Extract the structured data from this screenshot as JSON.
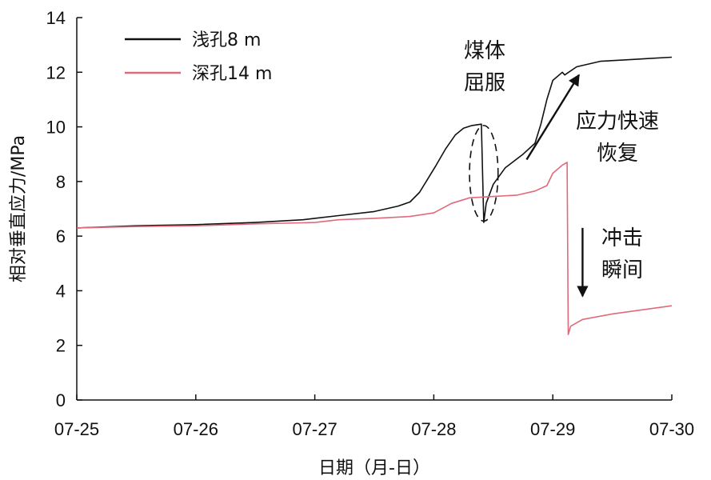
{
  "chart_data": {
    "type": "line",
    "xlabel": "日期（月-日）",
    "ylabel": "相对垂直应力/MPa",
    "xlim": [
      0,
      5
    ],
    "ylim": [
      0,
      14
    ],
    "x_ticks": [
      {
        "value": 0,
        "label": "07-25"
      },
      {
        "value": 1,
        "label": "07-26"
      },
      {
        "value": 2,
        "label": "07-27"
      },
      {
        "value": 3,
        "label": "07-28"
      },
      {
        "value": 4,
        "label": "07-29"
      },
      {
        "value": 5,
        "label": "07-30"
      }
    ],
    "y_ticks": [
      {
        "value": 0,
        "label": "0"
      },
      {
        "value": 2,
        "label": "2"
      },
      {
        "value": 4,
        "label": "4"
      },
      {
        "value": 6,
        "label": "6"
      },
      {
        "value": 8,
        "label": "8"
      },
      {
        "value": 10,
        "label": "10"
      },
      {
        "value": 12,
        "label": "12"
      },
      {
        "value": 14,
        "label": "14"
      }
    ],
    "grid": false,
    "legend_position": "top-left",
    "series": [
      {
        "name": "浅孔8 m",
        "color": "#111111",
        "points": [
          [
            0,
            6.3
          ],
          [
            0.5,
            6.38
          ],
          [
            1.0,
            6.42
          ],
          [
            1.5,
            6.5
          ],
          [
            1.9,
            6.6
          ],
          [
            2.0,
            6.65
          ],
          [
            2.2,
            6.75
          ],
          [
            2.5,
            6.9
          ],
          [
            2.7,
            7.1
          ],
          [
            2.8,
            7.25
          ],
          [
            2.88,
            7.6
          ],
          [
            2.95,
            8.1
          ],
          [
            3.02,
            8.6
          ],
          [
            3.1,
            9.2
          ],
          [
            3.18,
            9.7
          ],
          [
            3.25,
            9.95
          ],
          [
            3.32,
            10.05
          ],
          [
            3.4,
            10.1
          ],
          [
            3.42,
            6.5
          ],
          [
            3.44,
            7.2
          ],
          [
            3.5,
            7.9
          ],
          [
            3.6,
            8.5
          ],
          [
            3.75,
            9.0
          ],
          [
            3.85,
            9.4
          ],
          [
            3.9,
            10.1
          ],
          [
            3.95,
            11.0
          ],
          [
            4.0,
            11.7
          ],
          [
            4.08,
            12.0
          ],
          [
            4.1,
            11.9
          ],
          [
            4.2,
            12.2
          ],
          [
            4.4,
            12.4
          ],
          [
            4.6,
            12.45
          ],
          [
            4.8,
            12.5
          ],
          [
            5.0,
            12.55
          ]
        ]
      },
      {
        "name": "深孔14 m",
        "color": "#e06a7a",
        "points": [
          [
            0,
            6.3
          ],
          [
            0.5,
            6.35
          ],
          [
            1.0,
            6.38
          ],
          [
            1.5,
            6.45
          ],
          [
            2.0,
            6.5
          ],
          [
            2.2,
            6.6
          ],
          [
            2.5,
            6.65
          ],
          [
            2.8,
            6.72
          ],
          [
            3.0,
            6.85
          ],
          [
            3.15,
            7.2
          ],
          [
            3.3,
            7.4
          ],
          [
            3.5,
            7.45
          ],
          [
            3.7,
            7.5
          ],
          [
            3.85,
            7.65
          ],
          [
            3.95,
            7.85
          ],
          [
            4.0,
            8.3
          ],
          [
            4.08,
            8.6
          ],
          [
            4.12,
            8.7
          ],
          [
            4.13,
            2.4
          ],
          [
            4.15,
            2.7
          ],
          [
            4.25,
            2.95
          ],
          [
            4.5,
            3.15
          ],
          [
            4.75,
            3.3
          ],
          [
            5.0,
            3.45
          ]
        ]
      }
    ],
    "annotations": [
      {
        "text_lines": [
          "煤体",
          "屈服"
        ],
        "type": "ellipse",
        "center": [
          3.42,
          8.3
        ],
        "rx": 0.12,
        "ry": 1.75
      },
      {
        "text_lines": [
          "应力快速",
          "恢复"
        ],
        "type": "arrow",
        "from": [
          3.78,
          8.8
        ],
        "to": [
          4.22,
          11.9
        ]
      },
      {
        "text_lines": [
          "冲击",
          "瞬间"
        ],
        "type": "arrow",
        "from": [
          4.25,
          6.3
        ],
        "to": [
          4.25,
          3.8
        ]
      }
    ]
  }
}
